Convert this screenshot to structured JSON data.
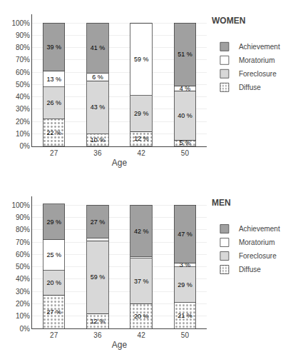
{
  "chart_data": [
    {
      "type": "bar",
      "title": "WOMEN",
      "xlabel": "Age",
      "categories": [
        "27",
        "36",
        "42",
        "50"
      ],
      "series": [
        {
          "name": "Diffuse",
          "color": "#FFFFFF",
          "marker": "dots",
          "values": [
            22,
            10,
            12,
            5
          ],
          "value_labels": [
            "22 %",
            "10 %",
            "12 %",
            "5 %"
          ]
        },
        {
          "name": "Foreclosure",
          "color": "#D8D8D8",
          "values": [
            26,
            43,
            29,
            40
          ],
          "value_labels": [
            "26 %",
            "43 %",
            "29 %",
            "40 %"
          ]
        },
        {
          "name": "Moratorium",
          "color": "#FFFFFF",
          "values": [
            13,
            6,
            59,
            4
          ],
          "value_labels": [
            "13 %",
            "6 %",
            "59 %",
            "4 %"
          ]
        },
        {
          "name": "Achievement",
          "color": "#A0A0A0",
          "values": [
            39,
            41,
            0,
            51
          ],
          "value_labels": [
            "39 %",
            "41 %",
            null,
            "51 %"
          ]
        }
      ],
      "ylim": [
        0,
        107
      ],
      "yticks": [
        {
          "value": 0,
          "label": "0%"
        },
        {
          "value": 10,
          "label": "10%"
        },
        {
          "value": 20,
          "label": "20%"
        },
        {
          "value": 30,
          "label": "30%"
        },
        {
          "value": 40,
          "label": "40%"
        },
        {
          "value": 50,
          "label": "50%"
        },
        {
          "value": 60,
          "label": "60%"
        },
        {
          "value": 70,
          "label": "70%"
        },
        {
          "value": 80,
          "label": "80%"
        },
        {
          "value": 90,
          "label": "90%"
        },
        {
          "value": 100,
          "label": "100%"
        }
      ],
      "grid": true,
      "stacked": true,
      "data_labels": true,
      "legend": "right"
    },
    {
      "type": "bar",
      "title": "MEN",
      "xlabel": "Age",
      "categories": [
        "27",
        "36",
        "42",
        "50"
      ],
      "series": [
        {
          "name": "Diffuse",
          "color": "#FFFFFF",
          "marker": "dots",
          "values": [
            27,
            12,
            20,
            21
          ],
          "value_labels": [
            "27 %",
            "12 %",
            "20 %",
            "21 %"
          ]
        },
        {
          "name": "Foreclosure",
          "color": "#D8D8D8",
          "values": [
            20,
            59,
            37,
            29
          ],
          "value_labels": [
            "20 %",
            "59 %",
            "37 %",
            "29 %"
          ]
        },
        {
          "name": "Moratorium",
          "color": "#FFFFFF",
          "values": [
            25,
            2,
            1,
            3
          ],
          "value_labels": [
            "25 %",
            null,
            null,
            "3 %"
          ]
        },
        {
          "name": "Achievement",
          "color": "#A0A0A0",
          "values": [
            29,
            27,
            42,
            47
          ],
          "value_labels": [
            "29 %",
            "27 %",
            "42 %",
            "47 %"
          ]
        }
      ],
      "ylim": [
        0,
        107
      ],
      "yticks": [
        {
          "value": 0,
          "label": "0%"
        },
        {
          "value": 10,
          "label": "10%"
        },
        {
          "value": 20,
          "label": "20%"
        },
        {
          "value": 30,
          "label": "30%"
        },
        {
          "value": 40,
          "label": "40%"
        },
        {
          "value": 50,
          "label": "50%"
        },
        {
          "value": 60,
          "label": "60%"
        },
        {
          "value": 70,
          "label": "70%"
        },
        {
          "value": 80,
          "label": "80%"
        },
        {
          "value": 90,
          "label": "90%"
        },
        {
          "value": 100,
          "label": "100%"
        }
      ],
      "grid": true,
      "stacked": true,
      "data_labels": true,
      "legend": "right"
    }
  ]
}
